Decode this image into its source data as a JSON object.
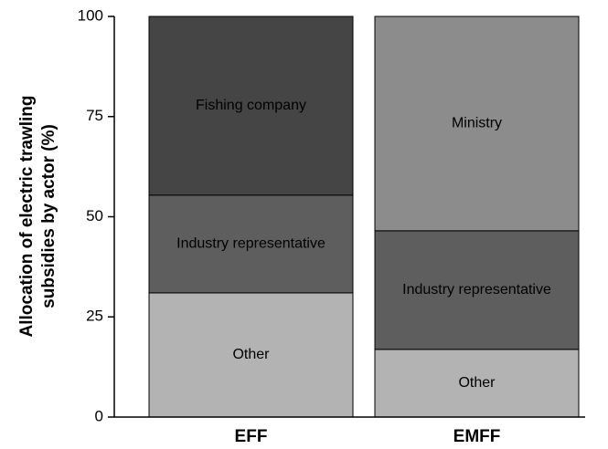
{
  "chart_data": {
    "type": "stacked_bar",
    "ylabel": [
      "Allocation of electric trawling",
      "subsidies by actor (%)"
    ],
    "categories": [
      "EFF",
      "EMFF"
    ],
    "series": [
      {
        "name": "Other",
        "color": "#b3b3b3",
        "values": [
          31.0,
          16.9
        ]
      },
      {
        "name": "Industry representative",
        "color": "#5e5e5e",
        "values": [
          24.4,
          29.6
        ]
      },
      {
        "name": "Fishing company",
        "color": "#454545",
        "values": [
          44.6,
          null
        ]
      },
      {
        "name": "Ministry",
        "color": "#8c8c8c",
        "values": [
          null,
          53.5
        ]
      }
    ],
    "ylim": [
      0,
      100
    ],
    "yticks": [
      0,
      25,
      50,
      75,
      100
    ],
    "grid": false
  }
}
